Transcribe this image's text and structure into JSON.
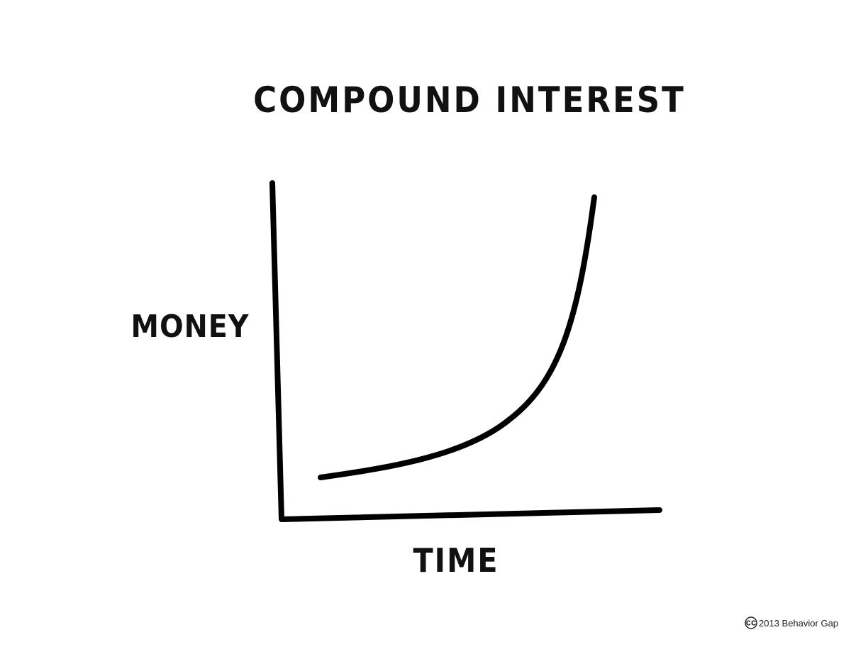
{
  "title": "COMPOUND INTEREST",
  "x_label": "TIME",
  "y_label": "MONEY",
  "credit": {
    "icon": "cc",
    "text": "2013 Behavior Gap"
  }
}
